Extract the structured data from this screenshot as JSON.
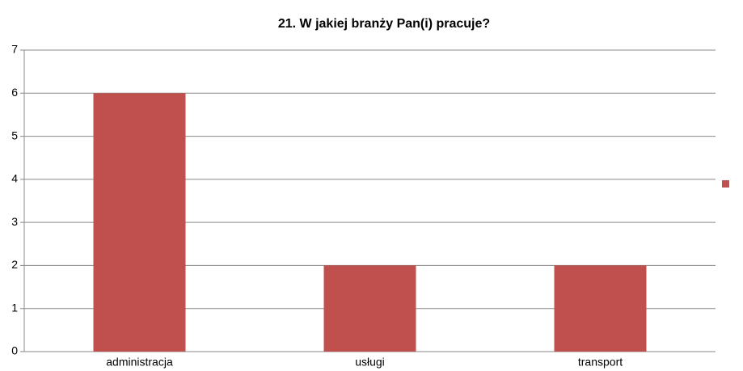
{
  "chart_data": {
    "type": "bar",
    "title": "21. W jakiej branży Pan(i) pracuje?",
    "categories": [
      "administracja",
      "usługi",
      "transport"
    ],
    "values": [
      6,
      2,
      2
    ],
    "color": "#c0504d",
    "ylim": [
      0,
      7
    ],
    "yticks": [
      0,
      1,
      2,
      3,
      4,
      5,
      6,
      7
    ],
    "grid": true
  }
}
